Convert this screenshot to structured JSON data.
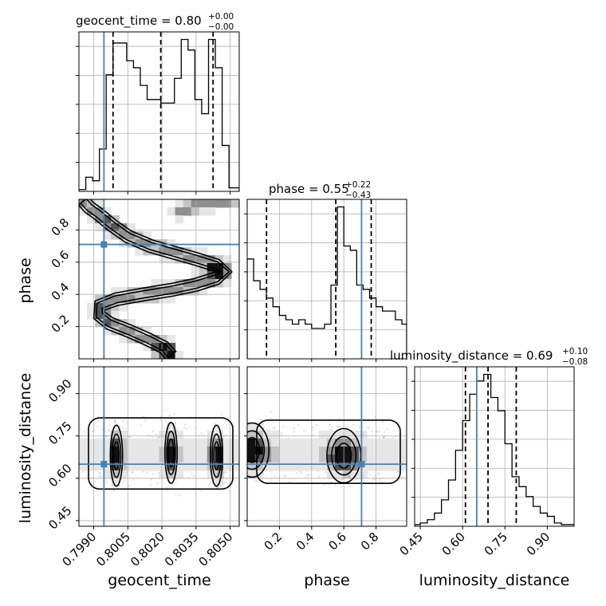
{
  "chart_data": {
    "type": "corner",
    "parameters": [
      "geocent_time",
      "phase",
      "luminosity_distance"
    ],
    "axis_labels": {
      "x": [
        "geocent_time",
        "phase",
        "luminosity_distance"
      ],
      "y_left": [
        "",
        "phase",
        "luminosity_distance"
      ]
    },
    "truths": [
      0.79945,
      0.71,
      0.65
    ],
    "ranges": [
      [
        0.79835,
        0.8054
      ],
      [
        0.0,
        0.99
      ],
      [
        0.43,
        0.995
      ]
    ],
    "ticks": {
      "geocent_time": {
        "values": [
          0.799,
          0.8005,
          0.802,
          0.8035,
          0.805
        ],
        "labels": [
          "0.7990",
          "0.8005",
          "0.8020",
          "0.8035",
          "0.8050"
        ]
      },
      "phase": {
        "values": [
          0.2,
          0.4,
          0.6,
          0.8
        ],
        "labels": [
          "0.2",
          "0.4",
          "0.6",
          "0.8"
        ]
      },
      "luminosity_distance": {
        "values": [
          0.45,
          0.6,
          0.75,
          0.9
        ],
        "labels": [
          "0.45",
          "0.60",
          "0.75",
          "0.90"
        ]
      }
    },
    "marginals": [
      {
        "parameter": "geocent_time",
        "title_base": "geocent_time = 0.80",
        "title_plus": "+0.00",
        "title_minus": "−0.00",
        "quantiles": [
          0.79985,
          0.80195,
          0.80425
        ],
        "bin_edges": [
          0.79835,
          0.79865,
          0.79895,
          0.79925,
          0.79955,
          0.79985,
          0.80015,
          0.80045,
          0.80075,
          0.80105,
          0.80135,
          0.80165,
          0.80195,
          0.80225,
          0.80255,
          0.80285,
          0.80315,
          0.80345,
          0.80375,
          0.80405,
          0.80435,
          0.80465,
          0.80495,
          0.80525,
          0.8054
        ],
        "counts": [
          0.5,
          4,
          3,
          12,
          33,
          42,
          42,
          37,
          35,
          30,
          26,
          26,
          25,
          25,
          32,
          43,
          40,
          26,
          22,
          43,
          35,
          13,
          1,
          1
        ]
      },
      {
        "parameter": "phase",
        "title_base": "phase = 0.55",
        "title_plus": "+0.22",
        "title_minus": "−0.43",
        "quantiles": [
          0.12,
          0.55,
          0.77
        ],
        "bin_edges": [
          0.0,
          0.04,
          0.08,
          0.12,
          0.16,
          0.2,
          0.24,
          0.28,
          0.32,
          0.36,
          0.4,
          0.44,
          0.48,
          0.52,
          0.56,
          0.6,
          0.64,
          0.68,
          0.72,
          0.76,
          0.8,
          0.84,
          0.88,
          0.92,
          0.96,
          0.99
        ],
        "counts": [
          23,
          18,
          16,
          14,
          12,
          10,
          9,
          8,
          9,
          8,
          7,
          7,
          8,
          17,
          35,
          26,
          25,
          17,
          16,
          14,
          12,
          11,
          11,
          9,
          8
        ]
      },
      {
        "parameter": "luminosity_distance",
        "title_base": "luminosity_distance = 0.69",
        "title_plus": "+0.10",
        "title_minus": "−0.08",
        "quantiles": [
          0.61,
          0.69,
          0.79
        ],
        "bin_edges": [
          0.43,
          0.45,
          0.475,
          0.5,
          0.525,
          0.55,
          0.575,
          0.6,
          0.625,
          0.65,
          0.675,
          0.7,
          0.725,
          0.75,
          0.775,
          0.8,
          0.825,
          0.85,
          0.875,
          0.9,
          0.925,
          0.95,
          0.975,
          0.995
        ],
        "counts": [
          0.5,
          1,
          2,
          4,
          8,
          14,
          23,
          32,
          40,
          44,
          46,
          39,
          35,
          25,
          15,
          12,
          9,
          6,
          4,
          3,
          1,
          0.5,
          0.5
        ]
      }
    ],
    "joint_ridges": [
      {
        "x": "geocent_time",
        "y": "phase",
        "path": [
          [
            0.79855,
            0.98
          ],
          [
            0.7988,
            0.94
          ],
          [
            0.7992,
            0.9
          ],
          [
            0.7998,
            0.83
          ],
          [
            0.8005,
            0.76
          ],
          [
            0.8015,
            0.7
          ],
          [
            0.8025,
            0.66
          ],
          [
            0.8035,
            0.62
          ],
          [
            0.8044,
            0.58
          ],
          [
            0.8048,
            0.54
          ],
          [
            0.8044,
            0.5
          ],
          [
            0.8035,
            0.46
          ],
          [
            0.8025,
            0.43
          ],
          [
            0.8012,
            0.4
          ],
          [
            0.8,
            0.37
          ],
          [
            0.79925,
            0.33
          ],
          [
            0.79925,
            0.27
          ],
          [
            0.7997,
            0.22
          ],
          [
            0.8006,
            0.17
          ],
          [
            0.8014,
            0.12
          ],
          [
            0.8021,
            0.07
          ],
          [
            0.8024,
            0.02
          ]
        ]
      },
      {
        "x": "geocent_time",
        "y": "phase",
        "path": [
          [
            0.8028,
            0.92
          ],
          [
            0.8035,
            0.95
          ],
          [
            0.8045,
            0.98
          ],
          [
            0.8052,
            0.99
          ]
        ]
      }
    ],
    "joint_blobs": [
      {
        "x": "geocent_time",
        "y": "luminosity_distance",
        "centers": [
          [
            0.8,
            0.68
          ],
          [
            0.8024,
            0.69
          ],
          [
            0.8044,
            0.68
          ]
        ]
      },
      {
        "x": "phase",
        "y": "luminosity_distance",
        "centers": [
          [
            0.03,
            0.7
          ],
          [
            0.6,
            0.68
          ]
        ]
      }
    ]
  }
}
